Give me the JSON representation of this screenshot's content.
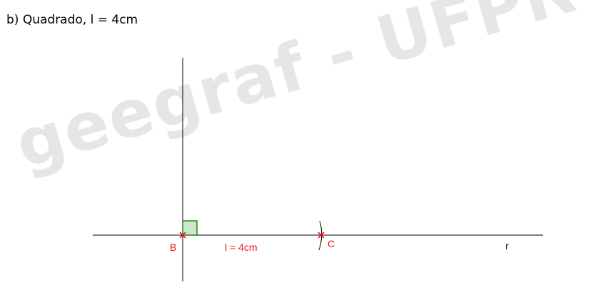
{
  "heading": "b) Quadrado, l = 4cm",
  "watermark": "geegraf - UFPR",
  "labels": {
    "point_b": "B",
    "point_c": "C",
    "side_length": "l = 4cm",
    "line_r": "r"
  },
  "colors": {
    "construction_line": "#000000",
    "point_marker": "#e8141c",
    "right_angle_fill": "#cfe7c9",
    "right_angle_stroke": "#2f7a2a",
    "watermark": "#e6e6e6"
  }
}
